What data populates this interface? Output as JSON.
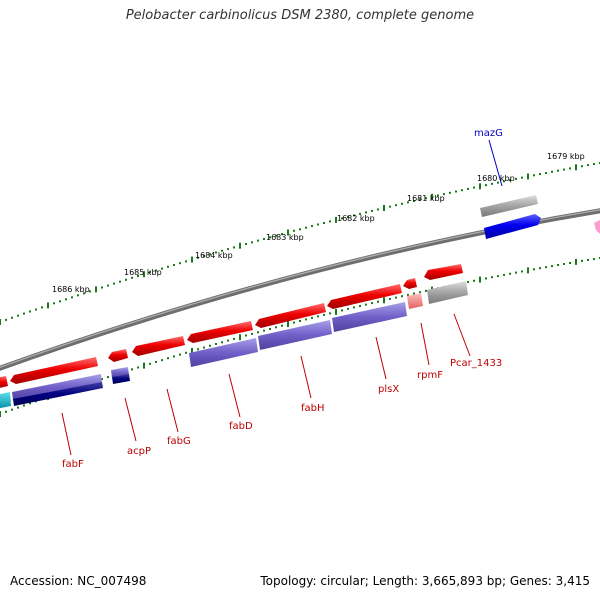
{
  "title": "Pelobacter carbinolicus DSM 2380, complete genome",
  "footer": {
    "accession": "Accession: NC_007498",
    "summary": "Topology: circular; Length: 3,665,893 bp; Genes: 3,415"
  },
  "colors": {
    "cds_forward": "#e00000",
    "cds_reverse": "#0000e8",
    "cds_pale": "#f08080",
    "hypothetical": "#a8a8a8",
    "cog_purple": "#7060c8",
    "cog_navy": "#000080",
    "cog_cyan": "#00c0d0",
    "tick": "#1a7a1a",
    "backbone": "#808080",
    "label_red": "#c00000",
    "label_blue": "#0000c0",
    "pink": "#ff9ad0"
  },
  "scale": [
    "1679 kbp",
    "1680 kbp",
    "1681 kbp",
    "1682 kbp",
    "1683 kbp",
    "1684 kbp",
    "1685 kbp",
    "1686 kbp"
  ],
  "genes": [
    "mazG",
    "fabF",
    "acpP",
    "fabG",
    "fabD",
    "fabH",
    "plsX",
    "rpmF",
    "Pcar_1433"
  ]
}
